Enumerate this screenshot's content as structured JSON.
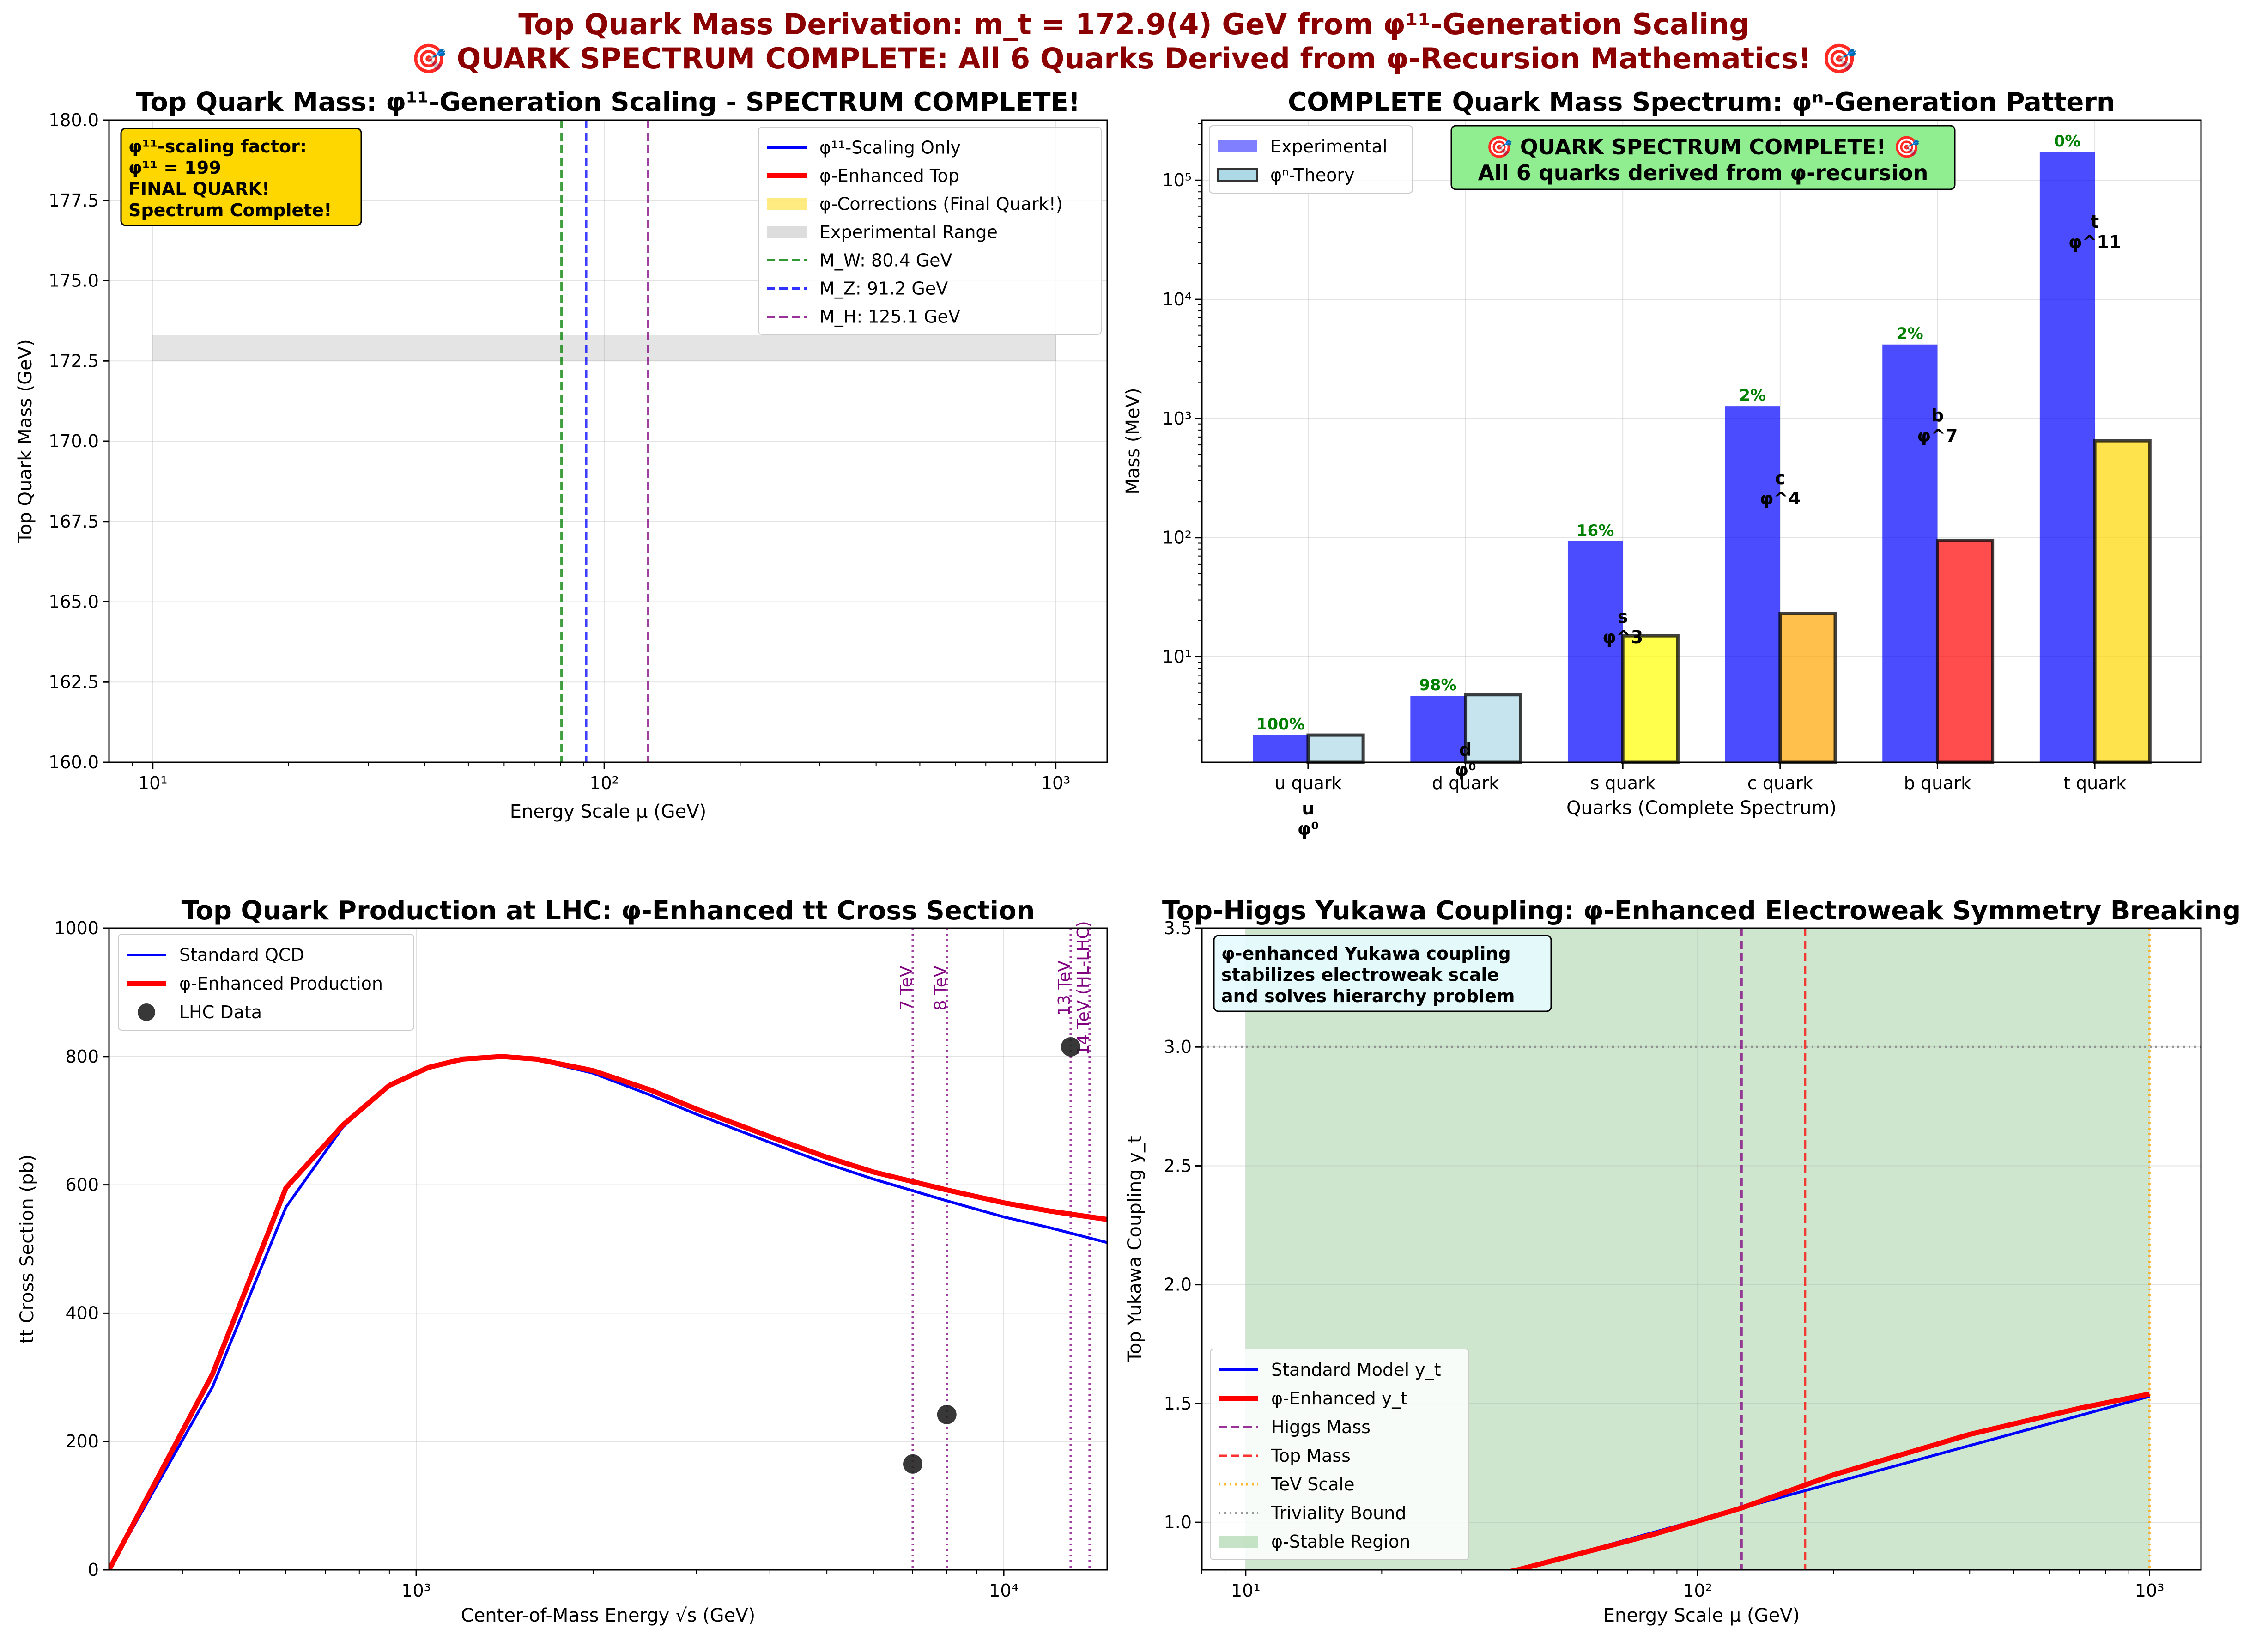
{
  "suptitle": {
    "line1": "Top Quark Mass Derivation: m_t = 172.9(4) GeV from φ¹¹-Generation Scaling",
    "line2": "🎯 QUARK SPECTRUM COMPLETE: All 6 Quarks Derived from φ-Recursion Mathematics! 🎯"
  },
  "colors": {
    "title": "#8b0000",
    "blue": "#0000ff",
    "red": "#ff0000",
    "green": "#008000",
    "purple": "#800080",
    "gold_box": "#ffd700",
    "green_box": "#90ee90",
    "light_blue": "#add8e6",
    "orange": "#ffa500"
  },
  "chart_data": [
    {
      "id": "top-mass",
      "type": "line",
      "title": "Top Quark Mass: φ¹¹-Generation Scaling - SPECTRUM COMPLETE!",
      "xlabel": "Energy Scale μ (GeV)",
      "ylabel": "Top Quark Mass (GeV)",
      "xscale": "log",
      "xlim": [
        8,
        1300
      ],
      "ylim": [
        160,
        180
      ],
      "xticks": [
        {
          "v": 10,
          "label": "10¹"
        },
        {
          "v": 100,
          "label": "10²"
        },
        {
          "v": 1000,
          "label": "10³"
        }
      ],
      "yticks": [
        "160.0",
        "162.5",
        "165.0",
        "167.5",
        "170.0",
        "172.5",
        "175.0",
        "177.5",
        "180.0"
      ],
      "experimental_range": {
        "x": [
          10,
          1000
        ],
        "y": [
          172.5,
          173.3
        ]
      },
      "vlines": [
        {
          "x": 80.4,
          "label": "M_W: 80.4 GeV",
          "color": "#008000"
        },
        {
          "x": 91.2,
          "label": "M_Z: 91.2 GeV",
          "color": "#0000ff"
        },
        {
          "x": 125.1,
          "label": "M_H: 125.1 GeV",
          "color": "#800080"
        }
      ],
      "legend": [
        {
          "label": "φ¹¹-Scaling Only",
          "kind": "line",
          "color": "#0000ff"
        },
        {
          "label": "φ-Enhanced Top",
          "kind": "thickline",
          "color": "#ff0000"
        },
        {
          "label": "φ-Corrections (Final Quark!)",
          "kind": "patch",
          "color": "#ffd700"
        },
        {
          "label": "Experimental Range",
          "kind": "patch",
          "color": "#bbbbbb"
        },
        {
          "label": "M_W: 80.4 GeV",
          "kind": "dash",
          "color": "#008000"
        },
        {
          "label": "M_Z: 91.2 GeV",
          "kind": "dash",
          "color": "#0000ff"
        },
        {
          "label": "M_H: 125.1 GeV",
          "kind": "dash",
          "color": "#800080"
        }
      ],
      "legend_position": "upper right",
      "annotation": [
        "φ¹¹-scaling factor:",
        "φ¹¹ = 199",
        "FINAL QUARK!",
        "Spectrum Complete!"
      ]
    },
    {
      "id": "quark-spectrum",
      "type": "bar",
      "title": "COMPLETE Quark Mass Spectrum: φⁿ-Generation Pattern",
      "xlabel": "Quarks (Complete Spectrum)",
      "ylabel": "Mass (MeV)",
      "yscale": "log",
      "ylim": [
        1.3,
        320000
      ],
      "categories": [
        "u quark",
        "d quark",
        "s quark",
        "c quark",
        "b quark",
        "t quark"
      ],
      "yticks": [
        {
          "v": 10,
          "label": "10¹"
        },
        {
          "v": 100,
          "label": "10²"
        },
        {
          "v": 1000,
          "label": "10³"
        },
        {
          "v": 10000,
          "label": "10⁴"
        },
        {
          "v": 100000,
          "label": "10⁵"
        }
      ],
      "series": [
        {
          "name": "Experimental",
          "values": [
            2.2,
            4.7,
            93,
            1270,
            4180,
            172900
          ],
          "color": "#0000ff"
        },
        {
          "name": "φⁿ-Theory",
          "values": [
            2.2,
            4.8,
            15,
            23,
            95,
            650
          ],
          "colors": [
            "#add8e6",
            "#add8e6",
            "#ffff00",
            "#ffa500",
            "#ff0000",
            "#ffd700"
          ]
        }
      ],
      "accuracy_labels": [
        "100%",
        "98%",
        "16%",
        "2%",
        "2%",
        "0%"
      ],
      "generation_labels": [
        {
          "name": "u",
          "power": "φ⁰",
          "y": 0.32
        },
        {
          "name": "d",
          "power": "φ⁰",
          "y": 1.0
        },
        {
          "name": "s",
          "power": "φ^3",
          "y": 13
        },
        {
          "name": "c",
          "power": "φ^4",
          "y": 190
        },
        {
          "name": "b",
          "power": "φ^7",
          "y": 640
        },
        {
          "name": "t",
          "power": "φ^11",
          "y": 27000
        }
      ],
      "legend_position": "upper left",
      "annotation": [
        "🎯 QUARK SPECTRUM COMPLETE! 🎯",
        "All 6 quarks derived from φ-recursion"
      ]
    },
    {
      "id": "ttbar-cross-section",
      "type": "line",
      "title": "Top Quark Production at LHC: φ-Enhanced tt Cross Section",
      "xlabel": "Center-of-Mass Energy √s (GeV)",
      "ylabel": "tt Cross Section (pb)",
      "xscale": "log",
      "xlim": [
        300,
        15000
      ],
      "ylim": [
        0,
        1000
      ],
      "xticks": [
        {
          "v": 1000,
          "label": "10³"
        },
        {
          "v": 10000,
          "label": "10⁴"
        }
      ],
      "yticks": [
        0,
        200,
        400,
        600,
        800,
        1000
      ],
      "series": [
        {
          "name": "Standard QCD",
          "color": "#0000ff",
          "x": [
            300,
            450,
            600,
            750,
            900,
            1050,
            1200,
            1400,
            1600,
            2000,
            2500,
            3000,
            4000,
            5000,
            6000,
            8000,
            10000,
            12000,
            15000
          ],
          "y": [
            0,
            285,
            565,
            690,
            755,
            783,
            796,
            800,
            795,
            774,
            740,
            710,
            666,
            633,
            609,
            575,
            550,
            533,
            510
          ]
        },
        {
          "name": "φ-Enhanced Production",
          "color": "#ff0000",
          "x": [
            300,
            450,
            600,
            750,
            900,
            1050,
            1200,
            1400,
            1600,
            2000,
            2500,
            3000,
            4000,
            5000,
            6000,
            8000,
            10000,
            12000,
            15000
          ],
          "y": [
            0,
            305,
            595,
            693,
            755,
            783,
            796,
            800,
            796,
            778,
            748,
            718,
            675,
            643,
            620,
            592,
            572,
            559,
            546
          ]
        }
      ],
      "scatter": {
        "name": "LHC Data",
        "x": [
          7000,
          8000,
          13000
        ],
        "y": [
          165,
          242,
          815
        ]
      },
      "vlines": [
        {
          "x": 7000,
          "label": "7 TeV"
        },
        {
          "x": 8000,
          "label": "8 TeV"
        },
        {
          "x": 13000,
          "label": "13 TeV"
        },
        {
          "x": 14000,
          "label": "14 TeV (HL-LHC)"
        }
      ],
      "legend_position": "upper left"
    },
    {
      "id": "yukawa",
      "type": "line",
      "title": "Top-Higgs Yukawa Coupling: φ-Enhanced Electroweak Symmetry Breaking",
      "xlabel": "Energy Scale μ (GeV)",
      "ylabel": "Top Yukawa Coupling y_t",
      "xscale": "log",
      "xlim": [
        8,
        1300
      ],
      "ylim": [
        0.8,
        3.5
      ],
      "xticks": [
        {
          "v": 10,
          "label": "10¹"
        },
        {
          "v": 100,
          "label": "10²"
        },
        {
          "v": 1000,
          "label": "10³"
        }
      ],
      "yticks": [
        "1.0",
        "1.5",
        "2.0",
        "2.5",
        "3.0",
        "3.5"
      ],
      "series": [
        {
          "name": "Standard Model y_t",
          "color": "#0000ff",
          "x": [
            10,
            40,
            125,
            1000
          ],
          "y": [
            0.57,
            0.8,
            1.06,
            1.53
          ]
        },
        {
          "name": "φ-Enhanced y_t",
          "color": "#ff0000",
          "x": [
            10,
            40,
            80,
            125,
            200,
            400,
            700,
            1000
          ],
          "y": [
            0.55,
            0.8,
            0.95,
            1.06,
            1.2,
            1.37,
            1.48,
            1.54
          ]
        }
      ],
      "stable_region": {
        "x": [
          10,
          1000
        ]
      },
      "vlines": [
        {
          "x": 125.1,
          "label": "Higgs Mass",
          "color": "#800080",
          "style": "dash"
        },
        {
          "x": 172.9,
          "label": "Top Mass",
          "color": "#ff0000",
          "style": "dash"
        },
        {
          "x": 1000,
          "label": "TeV Scale",
          "color": "#ffa500",
          "style": "dot"
        }
      ],
      "hlines": [
        {
          "y": 3.0,
          "label": "Triviality Bound",
          "color": "#808080"
        }
      ],
      "legend": [
        {
          "label": "Standard Model y_t",
          "kind": "line",
          "color": "#0000ff"
        },
        {
          "label": "φ-Enhanced y_t",
          "kind": "thickline",
          "color": "#ff0000"
        },
        {
          "label": "Higgs Mass",
          "kind": "dash",
          "color": "#800080"
        },
        {
          "label": "Top Mass",
          "kind": "dash",
          "color": "#ff0000"
        },
        {
          "label": "TeV Scale",
          "kind": "dot",
          "color": "#ffa500"
        },
        {
          "label": "Triviality Bound",
          "kind": "dot",
          "color": "#808080"
        },
        {
          "label": "φ-Stable Region",
          "kind": "patch",
          "color": "#90c890"
        }
      ],
      "legend_position": "lower left",
      "annotation": [
        "φ-enhanced Yukawa coupling",
        "stabilizes electroweak scale",
        "and solves hierarchy problem"
      ]
    }
  ]
}
